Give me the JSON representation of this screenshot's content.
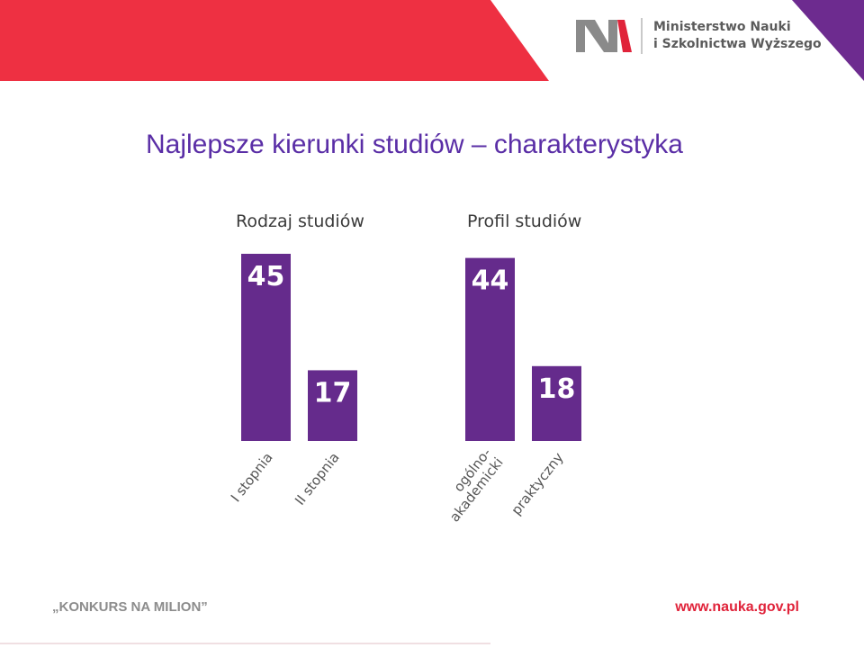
{
  "colors": {
    "header_red": "#ee3042",
    "header_purple": "#6d2b8f",
    "title": "#5a2ea6",
    "bar": "#652b8c",
    "bar_value": "#ffffff",
    "axis_text": "#555555",
    "footer_grey": "#8c8c8c",
    "footer_red": "#e0233a"
  },
  "logo": {
    "line1": "Ministerstwo Nauki",
    "line2": "i Szkolnictwa Wyższego"
  },
  "title": "Najlepsze kierunki studiów – charakterystyka",
  "chart_data": [
    {
      "type": "bar",
      "title": "Rodzaj studiów",
      "categories": [
        "I stopnia",
        "II stopnia"
      ],
      "values": [
        45,
        17
      ],
      "xlabel": "",
      "ylabel": "",
      "grid": false,
      "ylim": [
        0,
        45
      ]
    },
    {
      "type": "bar",
      "title": "Profil studiów",
      "categories": [
        [
          "ogólno-",
          "akademicki"
        ],
        "praktyczny"
      ],
      "values": [
        44,
        18
      ],
      "xlabel": "",
      "ylabel": "",
      "grid": false,
      "ylim": [
        0,
        45
      ]
    }
  ],
  "footer": {
    "left": "„KONKURS NA MILION”",
    "right": "www.nauka.gov.pl"
  }
}
